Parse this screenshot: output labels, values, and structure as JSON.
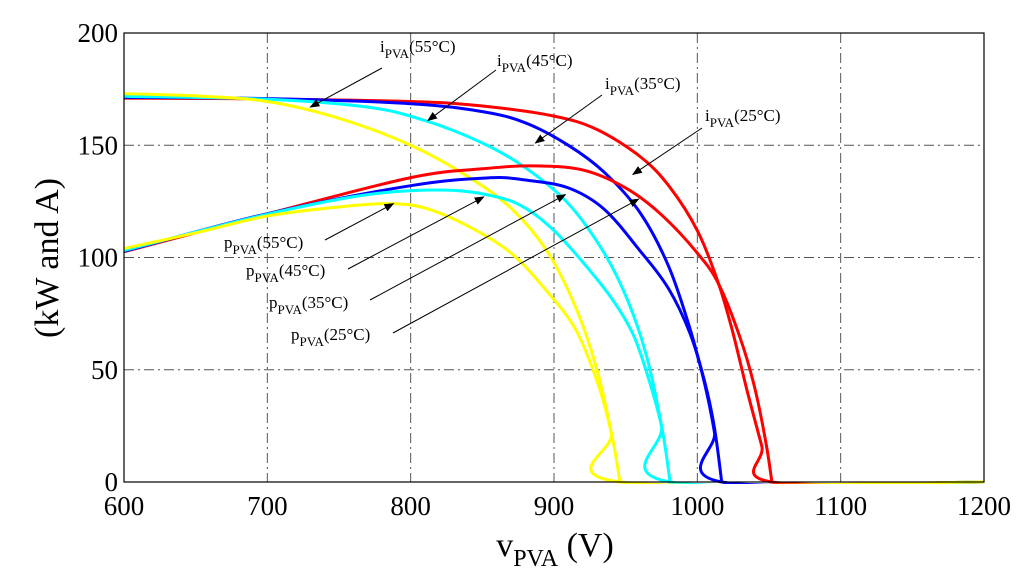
{
  "chart_data": {
    "type": "line",
    "title": "",
    "xlabel": {
      "main": "v",
      "sub": "PVA",
      "unit": " (V)"
    },
    "ylabel": "(kW and A)",
    "xlim": [
      600,
      1200
    ],
    "ylim": [
      0,
      200
    ],
    "xticks": [
      "600",
      "700",
      "800",
      "900",
      "1000",
      "1100",
      "1200"
    ],
    "yticks": [
      "0",
      "50",
      "100",
      "150",
      "200"
    ],
    "grid": true,
    "series": [
      {
        "name": "i_PVA(25°C)",
        "color": "#ff0000",
        "points": [
          [
            600,
            171
          ],
          [
            700,
            170.6
          ],
          [
            800,
            169.5
          ],
          [
            850,
            167.5
          ],
          [
            900,
            163
          ],
          [
            930,
            157
          ],
          [
            960,
            145
          ],
          [
            980,
            132
          ],
          [
            1000,
            112
          ],
          [
            1015,
            88
          ],
          [
            1025,
            66
          ],
          [
            1035,
            40
          ],
          [
            1045,
            16
          ],
          [
            1052,
            0
          ],
          [
            1200,
            0
          ]
        ]
      },
      {
        "name": "i_PVA(35°C)",
        "color": "#0000ff",
        "points": [
          [
            600,
            171.3
          ],
          [
            700,
            170.8
          ],
          [
            800,
            168.5
          ],
          [
            850,
            165
          ],
          [
            880,
            160
          ],
          [
            910,
            150
          ],
          [
            935,
            138
          ],
          [
            960,
            120
          ],
          [
            980,
            96
          ],
          [
            995,
            68
          ],
          [
            1005,
            44
          ],
          [
            1012,
            22
          ],
          [
            1017,
            0
          ],
          [
            1200,
            0
          ]
        ]
      },
      {
        "name": "i_PVA(45°C)",
        "color": "#00ffff",
        "points": [
          [
            600,
            171.8
          ],
          [
            700,
            170.5
          ],
          [
            770,
            167
          ],
          [
            810,
            161
          ],
          [
            850,
            151
          ],
          [
            880,
            140
          ],
          [
            910,
            124
          ],
          [
            935,
            102
          ],
          [
            952,
            80
          ],
          [
            965,
            55
          ],
          [
            975,
            25
          ],
          [
            981,
            0
          ],
          [
            1200,
            0
          ]
        ]
      },
      {
        "name": "i_PVA(55°C)",
        "color": "#ffff00",
        "points": [
          [
            600,
            173
          ],
          [
            650,
            172
          ],
          [
            700,
            169.5
          ],
          [
            750,
            162
          ],
          [
            800,
            150
          ],
          [
            840,
            136
          ],
          [
            870,
            122
          ],
          [
            895,
            103
          ],
          [
            915,
            78
          ],
          [
            930,
            50
          ],
          [
            940,
            22
          ],
          [
            946,
            0
          ],
          [
            1200,
            0
          ]
        ]
      },
      {
        "name": "p_PVA(25°C)",
        "color": "#ff0000",
        "points": [
          [
            600,
            102.6
          ],
          [
            700,
            119.4
          ],
          [
            800,
            135.6
          ],
          [
            850,
            139.5
          ],
          [
            885,
            140.8
          ],
          [
            920,
            139
          ],
          [
            950,
            131
          ],
          [
            975,
            119
          ],
          [
            1000,
            102
          ],
          [
            1015,
            88
          ],
          [
            1030,
            64
          ],
          [
            1040,
            42
          ],
          [
            1048,
            17
          ],
          [
            1052,
            0
          ]
        ]
      },
      {
        "name": "p_PVA(35°C)",
        "color": "#0000ff",
        "points": [
          [
            600,
            102.8
          ],
          [
            700,
            119.5
          ],
          [
            800,
            132
          ],
          [
            855,
            135.5
          ],
          [
            880,
            134.5
          ],
          [
            910,
            131
          ],
          [
            935,
            121.5
          ],
          [
            960,
            103
          ],
          [
            980,
            86
          ],
          [
            995,
            66
          ],
          [
            1005,
            45
          ],
          [
            1012,
            24
          ],
          [
            1017,
            0
          ]
        ]
      },
      {
        "name": "p_PVA(45°C)",
        "color": "#00ffff",
        "points": [
          [
            600,
            103.1
          ],
          [
            700,
            119.3
          ],
          [
            770,
            128
          ],
          [
            825,
            130
          ],
          [
            860,
            127
          ],
          [
            880,
            122
          ],
          [
            900,
            112
          ],
          [
            920,
            98
          ],
          [
            940,
            82
          ],
          [
            955,
            66
          ],
          [
            965,
            48
          ],
          [
            975,
            25
          ],
          [
            981,
            0
          ]
        ]
      },
      {
        "name": "p_PVA(55°C)",
        "color": "#ffff00",
        "points": [
          [
            600,
            104
          ],
          [
            650,
            111
          ],
          [
            700,
            118.5
          ],
          [
            750,
            122.5
          ],
          [
            785,
            124
          ],
          [
            810,
            122
          ],
          [
            840,
            114
          ],
          [
            870,
            102
          ],
          [
            895,
            85
          ],
          [
            915,
            68
          ],
          [
            930,
            45
          ],
          [
            940,
            22
          ],
          [
            946,
            0
          ]
        ]
      }
    ],
    "annotations": [
      {
        "id": "i55",
        "prefix": "i",
        "sub": "PVA",
        "suffix": "(55°C)",
        "arrow_to": [
          730,
          167
        ]
      },
      {
        "id": "i45",
        "prefix": "i",
        "sub": "PVA",
        "suffix": "(45°C)",
        "arrow_to": [
          812,
          161
        ]
      },
      {
        "id": "i35",
        "prefix": "i",
        "sub": "PVA",
        "suffix": "(35°C)",
        "arrow_to": [
          887,
          151
        ]
      },
      {
        "id": "i25",
        "prefix": "i",
        "sub": "PVA",
        "suffix": "(25°C)",
        "arrow_to": [
          955,
          137
        ]
      },
      {
        "id": "p55",
        "prefix": "p",
        "sub": "PVA",
        "suffix": "(55°C)",
        "arrow_to": [
          788,
          124
        ]
      },
      {
        "id": "p45",
        "prefix": "p",
        "sub": "PVA",
        "suffix": "(45°C)",
        "arrow_to": [
          851,
          127
        ]
      },
      {
        "id": "p35",
        "prefix": "p",
        "sub": "PVA",
        "suffix": "(35°C)",
        "arrow_to": [
          908,
          128
        ]
      },
      {
        "id": "p25",
        "prefix": "p",
        "sub": "PVA",
        "suffix": "(25°C)",
        "arrow_to": [
          959,
          126
        ]
      }
    ]
  }
}
